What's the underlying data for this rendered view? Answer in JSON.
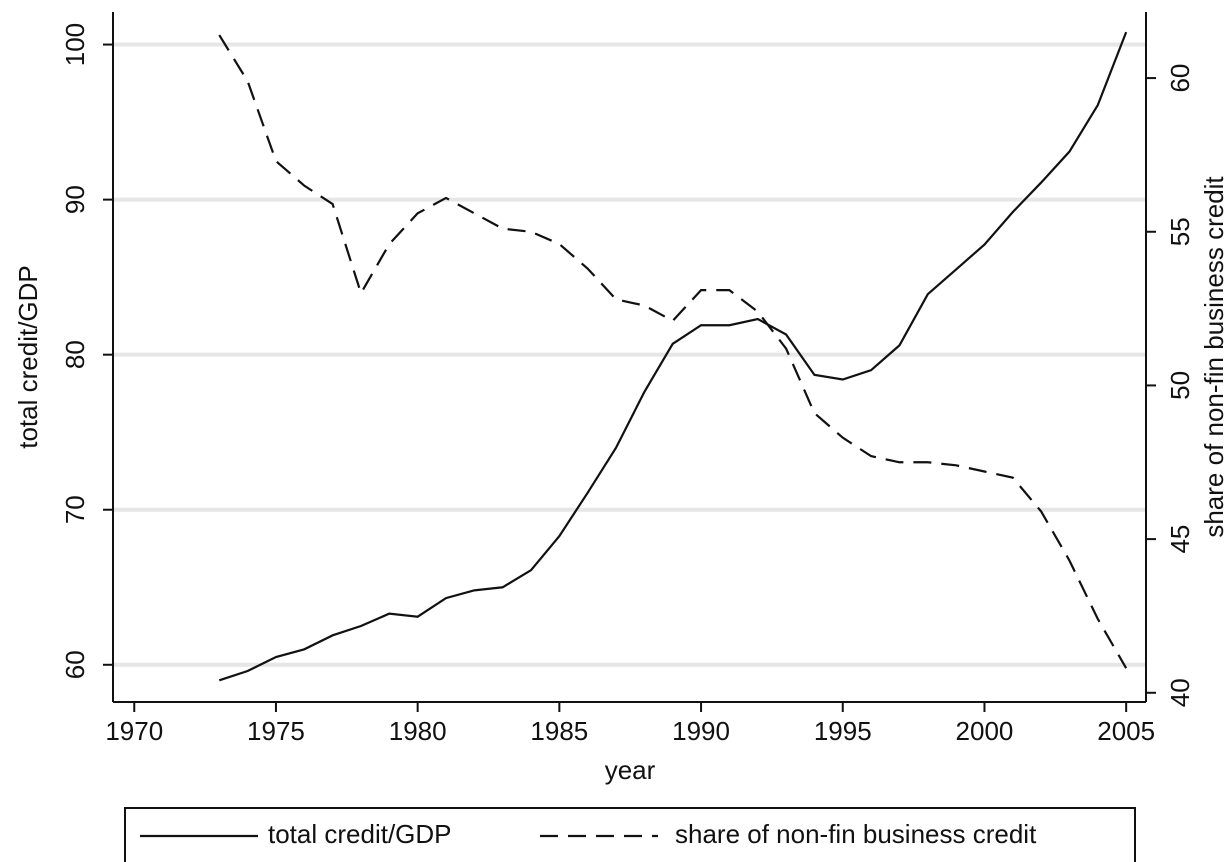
{
  "chart_data": {
    "type": "line",
    "x_label": "year",
    "y_label": "total credit/GDP",
    "y2_label": "share of non-fin business credit",
    "x": [
      1973,
      1974,
      1975,
      1976,
      1977,
      1978,
      1979,
      1980,
      1981,
      1982,
      1983,
      1984,
      1985,
      1986,
      1987,
      1988,
      1989,
      1990,
      1991,
      1992,
      1993,
      1994,
      1995,
      1996,
      1997,
      1998,
      1999,
      2000,
      2001,
      2002,
      2003,
      2004,
      2005
    ],
    "series": [
      {
        "name": "total credit/GDP",
        "color": "#111111",
        "style": "solid",
        "axis": "y",
        "values": [
          59,
          59.6,
          60.5,
          61,
          61.9,
          62.5,
          63.3,
          63.1,
          64.3,
          64.8,
          65,
          66.1,
          68.3,
          71.1,
          74,
          77.6,
          80.7,
          81.9,
          81.9,
          82.3,
          81.3,
          78.7,
          78.4,
          79,
          80.6,
          83.9,
          85.5,
          87.1,
          89.2,
          91.1,
          93.1,
          96.1,
          100.8
        ]
      },
      {
        "name": "share of non-fin business credit",
        "color": "#111111",
        "style": "dashed",
        "axis": "y2",
        "values": [
          61.4,
          59.9,
          57.3,
          56.5,
          55.9,
          53,
          54.6,
          55.6,
          56.1,
          55.6,
          55.1,
          55,
          54.6,
          53.8,
          52.8,
          52.6,
          52.1,
          53.1,
          53.1,
          52.4,
          51.2,
          49.1,
          48.3,
          47.7,
          47.5,
          47.5,
          47.4,
          47.2,
          47,
          45.9,
          44.3,
          42.4,
          40.8
        ]
      }
    ],
    "xlim": [
      1969.25,
      2005.7
    ],
    "xticks": [
      1970,
      1975,
      1980,
      1985,
      1990,
      1995,
      2000,
      2005
    ],
    "ylim": [
      57.6,
      102.1
    ],
    "yticks": [
      60,
      70,
      80,
      90,
      100
    ],
    "y2lim": [
      39.7,
      62.15
    ],
    "y2ticks": [
      40,
      45,
      50,
      55,
      60
    ],
    "grid": true,
    "legend": "bottom"
  }
}
